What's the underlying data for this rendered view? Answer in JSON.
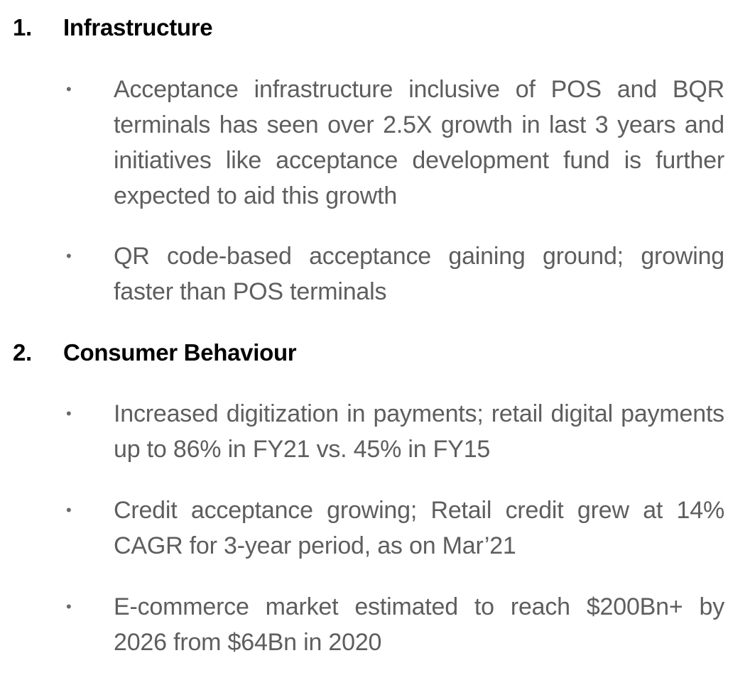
{
  "sections": [
    {
      "number": "1.",
      "title": "Infrastructure",
      "bullets": [
        "Acceptance infrastructure inclusive of POS and BQR terminals has seen over 2.5X growth in last 3 years and initiatives like acceptance development fund is further expected to aid this growth",
        "QR code-based acceptance gaining ground; growing faster than POS terminals"
      ]
    },
    {
      "number": "2.",
      "title": "Consumer Behaviour",
      "bullets": [
        "Increased digitization in payments; retail digital payments up to 86% in FY21 vs. 45% in FY15",
        "Credit acceptance growing; Retail credit grew at 14% CAGR for 3-year period, as on Mar’21",
        "E-commerce market estimated to reach $200Bn+ by 2026 from $64Bn in 2020"
      ]
    }
  ],
  "bullet_symbol": "•"
}
